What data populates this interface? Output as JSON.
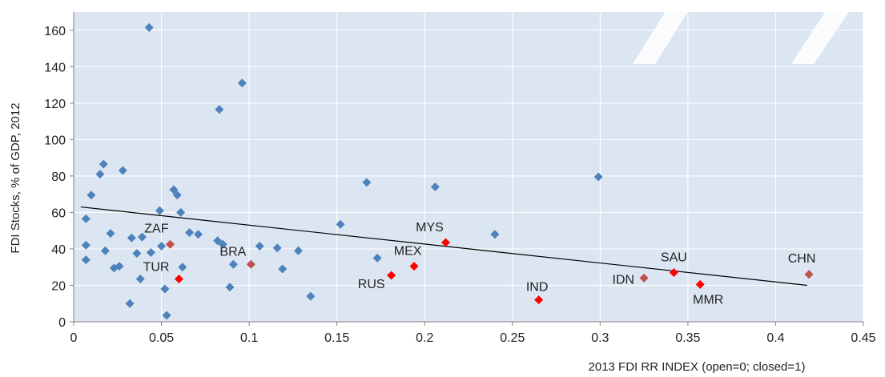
{
  "chart_data": {
    "type": "scatter",
    "title": "",
    "xlabel": "2013 FDI RR INDEX (open=0; closed=1)",
    "ylabel": "FDI Stocks, % of GDP, 2012",
    "xlim": [
      0,
      0.45
    ],
    "ylim": [
      0,
      170
    ],
    "xticks": [
      0,
      0.05,
      0.1,
      0.15,
      0.2,
      0.25,
      0.3,
      0.35,
      0.4,
      0.45
    ],
    "xtick_labels": [
      "0",
      "0.05",
      "0.1",
      "0.15",
      "0.2",
      "0.25",
      "0.3",
      "0.35",
      "0.4",
      "0.45"
    ],
    "yticks": [
      0,
      20,
      40,
      60,
      80,
      100,
      120,
      140,
      160
    ],
    "ytick_labels": [
      "0",
      "20",
      "40",
      "60",
      "80",
      "100",
      "120",
      "140",
      "160"
    ],
    "grid": true,
    "background": "#dce6f2",
    "colors": {
      "others": "#4f81bd",
      "highlighted": "#ff0000",
      "highlighted_dark": "#c0504d",
      "trend": "#000000"
    },
    "trendline": {
      "x": [
        0.004,
        0.418
      ],
      "y": [
        63,
        20
      ]
    },
    "series": [
      {
        "color": "#4f81bd",
        "points": [
          [
            0.007,
            56.5
          ],
          [
            0.007,
            42
          ],
          [
            0.007,
            34
          ],
          [
            0.01,
            69.5
          ],
          [
            0.015,
            81
          ],
          [
            0.017,
            86.5
          ],
          [
            0.018,
            39
          ],
          [
            0.021,
            48.5
          ],
          [
            0.023,
            29.5
          ],
          [
            0.026,
            30.5
          ],
          [
            0.028,
            83
          ],
          [
            0.032,
            10
          ],
          [
            0.033,
            46
          ],
          [
            0.036,
            37.5
          ],
          [
            0.038,
            23.5
          ],
          [
            0.039,
            46.5
          ],
          [
            0.043,
            161.5
          ],
          [
            0.044,
            38
          ],
          [
            0.049,
            61
          ],
          [
            0.05,
            41.5
          ],
          [
            0.052,
            18
          ],
          [
            0.053,
            3.5
          ],
          [
            0.057,
            72.5
          ],
          [
            0.059,
            69.5
          ],
          [
            0.061,
            60
          ],
          [
            0.062,
            30
          ],
          [
            0.066,
            49
          ],
          [
            0.071,
            48
          ],
          [
            0.082,
            44.5
          ],
          [
            0.083,
            116.5
          ],
          [
            0.085,
            42.5
          ],
          [
            0.089,
            19
          ],
          [
            0.091,
            31.5
          ],
          [
            0.096,
            131
          ],
          [
            0.106,
            41.5
          ],
          [
            0.116,
            40.5
          ],
          [
            0.119,
            29
          ],
          [
            0.128,
            39
          ],
          [
            0.135,
            14
          ],
          [
            0.152,
            53.5
          ],
          [
            0.167,
            76.5
          ],
          [
            0.173,
            35
          ],
          [
            0.206,
            74
          ],
          [
            0.24,
            48
          ],
          [
            0.299,
            79.5
          ]
        ]
      },
      {
        "color": "#ff0000",
        "points": [
          [
            0.06,
            23.5
          ],
          [
            0.181,
            25.5
          ],
          [
            0.194,
            30.5
          ],
          [
            0.212,
            43.5
          ],
          [
            0.265,
            12
          ],
          [
            0.342,
            27
          ],
          [
            0.357,
            20.5
          ]
        ]
      },
      {
        "color": "#c0504d",
        "points": [
          [
            0.055,
            42.5
          ],
          [
            0.101,
            31.5
          ],
          [
            0.325,
            24
          ],
          [
            0.419,
            26
          ]
        ]
      }
    ],
    "labels": [
      {
        "text": "ZAF",
        "x": 0.055,
        "y": 42.5,
        "anchor": "end",
        "dx": -2,
        "dy": -15
      },
      {
        "text": "TUR",
        "x": 0.06,
        "y": 23.5,
        "anchor": "end",
        "dx": -12,
        "dy": -10
      },
      {
        "text": "BRA",
        "x": 0.101,
        "y": 31.5,
        "anchor": "end",
        "dx": -6,
        "dy": -11
      },
      {
        "text": "RUS",
        "x": 0.181,
        "y": 25.5,
        "anchor": "end",
        "dx": -8,
        "dy": 16
      },
      {
        "text": "MEX",
        "x": 0.194,
        "y": 30.5,
        "anchor": "middle",
        "dx": -8,
        "dy": -14
      },
      {
        "text": "MYS",
        "x": 0.212,
        "y": 43.5,
        "anchor": "middle",
        "dx": -20,
        "dy": -14
      },
      {
        "text": "IND",
        "x": 0.265,
        "y": 12,
        "anchor": "middle",
        "dx": -2,
        "dy": -11
      },
      {
        "text": "IDN",
        "x": 0.325,
        "y": 24,
        "anchor": "end",
        "dx": -12,
        "dy": 7
      },
      {
        "text": "SAU",
        "x": 0.342,
        "y": 27,
        "anchor": "middle",
        "dx": 0,
        "dy": -14
      },
      {
        "text": "MMR",
        "x": 0.357,
        "y": 20.5,
        "anchor": "middle",
        "dx": 10,
        "dy": 24
      },
      {
        "text": "CHN",
        "x": 0.419,
        "y": 26,
        "anchor": "middle",
        "dx": -9,
        "dy": -15
      }
    ]
  }
}
